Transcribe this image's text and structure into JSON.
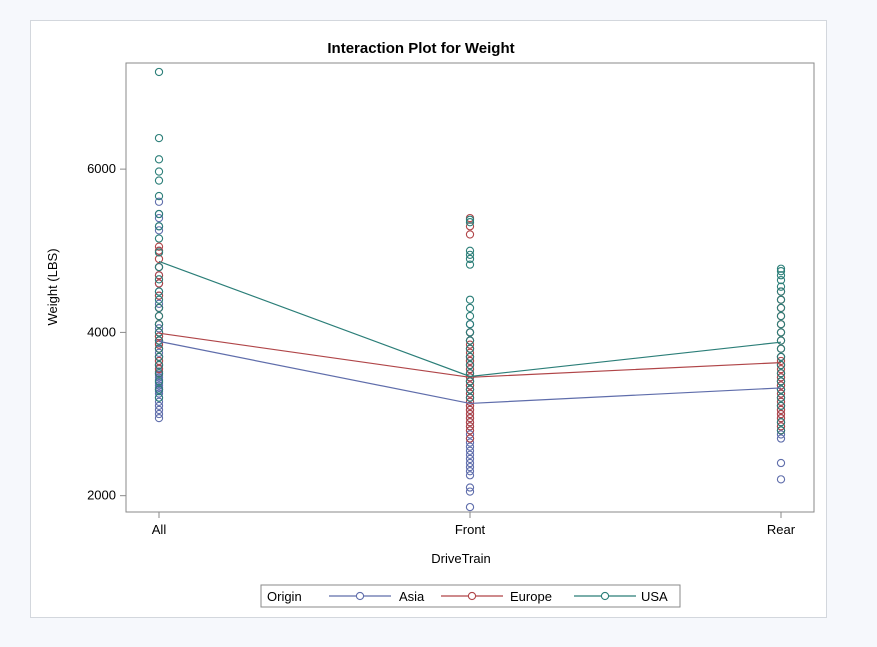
{
  "chart_data": {
    "type": "scatter",
    "title": "Interaction Plot for Weight",
    "xlabel": "DriveTrain",
    "ylabel": "Weight (LBS)",
    "categories": [
      "All",
      "Front",
      "Rear"
    ],
    "ylim": [
      1800,
      7300
    ],
    "yticks": [
      2000,
      4000,
      6000
    ],
    "grid": false,
    "legend": {
      "title": "Origin",
      "placement": "bottom-center",
      "entries": [
        "Asia",
        "Europe",
        "USA"
      ]
    },
    "series": [
      {
        "name": "Asia",
        "color": "#5f6dab",
        "means": [
          3890,
          3130,
          3320
        ],
        "points": [
          [
            3950,
            3870,
            3800,
            3750,
            3700,
            3650,
            3600,
            3560,
            3520,
            3480,
            3450,
            3420,
            3380,
            3350,
            3320,
            3300,
            3280,
            3250,
            3200,
            3150,
            3100,
            3050,
            3000,
            2950,
            4050,
            4100,
            4300,
            4350,
            4450,
            4500,
            4600,
            4700,
            4800,
            5000,
            5250,
            5300,
            5400,
            5450,
            5600
          ],
          [
            3400,
            3350,
            3300,
            3250,
            3200,
            3150,
            3100,
            3050,
            3000,
            2950,
            2900,
            2850,
            2800,
            2750,
            2700,
            2650,
            2600,
            2550,
            2500,
            2450,
            2400,
            2350,
            2300,
            2250,
            2100,
            2050,
            1860,
            3450,
            3500,
            3550,
            3600,
            3650,
            3700,
            3800,
            3900,
            4000,
            4100
          ],
          [
            3500,
            3450,
            3400,
            3350,
            3300,
            3250,
            3200,
            3150,
            3100,
            3050,
            3000,
            2950,
            2900,
            2850,
            2800,
            2750,
            2700,
            2400,
            2200,
            3600,
            3700
          ]
        ]
      },
      {
        "name": "Europe",
        "color": "#b04548",
        "means": [
          3990,
          3450,
          3630
        ],
        "points": [
          [
            4000,
            3950,
            3900,
            3850,
            3800,
            4100,
            4200,
            4300,
            4450,
            4600,
            4700,
            4800,
            4900,
            5000,
            5050,
            3700,
            3650,
            3600,
            3550,
            3500
          ],
          [
            3850,
            3800,
            3750,
            3700,
            3650,
            3600,
            3550,
            3500,
            3450,
            3400,
            3350,
            3300,
            3250,
            3200,
            3150,
            3100,
            3050,
            3000,
            2950,
            2900,
            2850,
            2800,
            2700,
            3900,
            4000,
            5200,
            5300,
            5400
          ],
          [
            3900,
            3800,
            3700,
            3650,
            3600,
            3550,
            3500,
            3450,
            3400,
            3350,
            3300,
            3250,
            3200,
            3150,
            3100,
            3050,
            3000,
            2950,
            2900,
            2850,
            2800,
            4000,
            4100,
            4200,
            4300,
            4400,
            4500
          ]
        ]
      },
      {
        "name": "USA",
        "color": "#2b7e78",
        "means": [
          4870,
          3460,
          3880
        ],
        "points": [
          [
            7190,
            6380,
            6120,
            5970,
            5860,
            5670,
            5450,
            5300,
            5150,
            4980,
            4800,
            4650,
            4500,
            4400,
            4300,
            4200,
            4100,
            4000,
            3900,
            3800,
            3700,
            3600,
            3500,
            3400,
            3300,
            3200
          ],
          [
            3200,
            3300,
            3400,
            3500,
            3600,
            3700,
            3800,
            3900,
            4000,
            4100,
            4200,
            4300,
            4400,
            4830,
            4900,
            4950,
            5000,
            5350,
            5380
          ],
          [
            3400,
            3500,
            3600,
            3700,
            3800,
            3900,
            4000,
            4100,
            4200,
            4300,
            4400,
            4500,
            4560,
            4640,
            4700,
            4750,
            4780,
            3300,
            3200,
            3100,
            2900,
            2800
          ]
        ]
      }
    ]
  }
}
